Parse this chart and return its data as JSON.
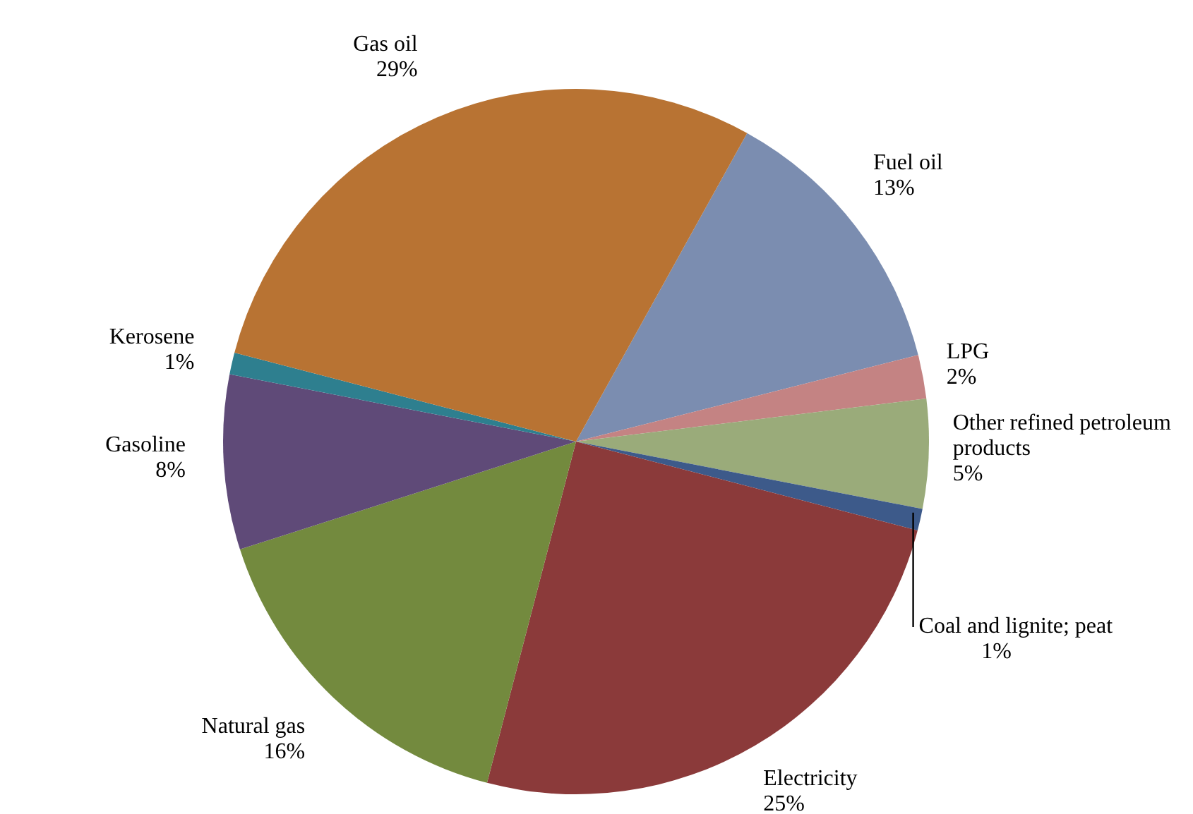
{
  "chart_data": {
    "type": "pie",
    "categories": [
      "Fuel oil",
      "LPG",
      "Other refined petroleum products",
      "Coal and lignite; peat",
      "Electricity",
      "Natural gas",
      "Gasoline",
      "Kerosene",
      "Gas oil"
    ],
    "values": [
      13,
      2,
      5,
      1,
      25,
      16,
      8,
      1,
      29
    ],
    "value_labels": [
      "13%",
      "2%",
      "5%",
      "1%",
      "25%",
      "16%",
      "8%",
      "1%",
      "29%"
    ],
    "colors": [
      "#7b8db0",
      "#c48383",
      "#9aab7a",
      "#3d5a8a",
      "#8b3a3a",
      "#738a3e",
      "#5f4a78",
      "#2e7f8f",
      "#b87333"
    ]
  }
}
